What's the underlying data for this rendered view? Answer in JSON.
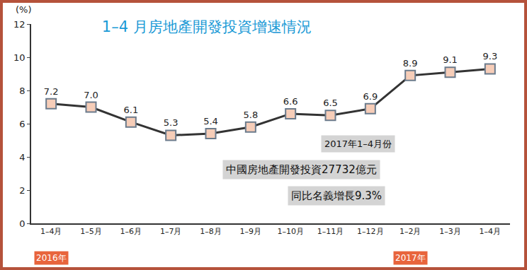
{
  "chart_data": {
    "type": "line",
    "title": "1–4 月房地產開發投資增速情況",
    "y_label": "(%)",
    "categories": [
      "1–4月",
      "1–5月",
      "1–6月",
      "1–7月",
      "1–8月",
      "1–9月",
      "1–10月",
      "1–11月",
      "1–12月",
      "1–2月",
      "1–3月",
      "1–4月"
    ],
    "values": [
      7.2,
      7.0,
      6.1,
      5.3,
      5.4,
      5.8,
      6.6,
      6.5,
      6.9,
      8.9,
      9.1,
      9.3
    ],
    "value_labels": [
      "7.2",
      "7.0",
      "6.1",
      "5.3",
      "5.4",
      "5.8",
      "6.6",
      "6.5",
      "6.9",
      "8.9",
      "9.1",
      "9.3"
    ],
    "data_labels": true,
    "color": "#333333",
    "marker": "square",
    "ylim": [
      0,
      12
    ],
    "yticks": [
      0,
      2,
      4,
      6,
      8,
      10,
      12
    ],
    "grid": false,
    "year_labels": [
      {
        "text": "2016年",
        "index": 0
      },
      {
        "text": "2017年",
        "index": 9
      }
    ],
    "notes": [
      "2017年1–4月份",
      "中國房地產開發投資27732億元",
      "同比名義增長9.3%"
    ]
  }
}
